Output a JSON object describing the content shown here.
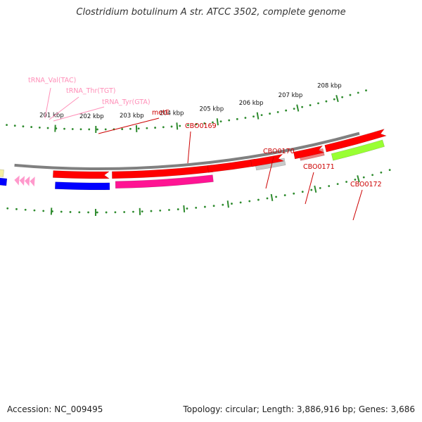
{
  "title": "Clostridium botulinum A str. ATCC 3502, complete genome",
  "footer": {
    "accession": "Accession: NC_009495",
    "stats": "Topology: circular; Length: 3,886,916 bp; Genes: 3,686"
  },
  "colors": {
    "backbone": "#808080",
    "ticks": "#2e8b2e",
    "cds": "#ff0000",
    "trna": "#ff99cc",
    "label_red": "#cc0000",
    "label_pink": "#ff8fb8",
    "blue": "#0000ff",
    "magenta": "#ff1493",
    "yellow": "#f5f0a0",
    "grey": "#c8c8c8",
    "salmon": "#f08080",
    "lime": "#99ff33"
  },
  "scale": {
    "unit": "kbp",
    "ticks": [
      "201 kbp",
      "202 kbp",
      "203 kbp",
      "204 kbp",
      "205 kbp",
      "206 kbp",
      "207 kbp",
      "208 kbp"
    ]
  },
  "gene_labels": [
    {
      "id": "trna-val",
      "text": "tRNA_Val(TAC)",
      "color": "label_pink"
    },
    {
      "id": "trna-thr",
      "text": "tRNA_Thr(TGT)",
      "color": "label_pink"
    },
    {
      "id": "trna-tyr",
      "text": "tRNA_Tyr(GTA)",
      "color": "label_pink"
    },
    {
      "id": "mete",
      "text": "metE",
      "color": "label_red"
    },
    {
      "id": "cbo0169",
      "text": "CBO0169",
      "color": "label_red"
    },
    {
      "id": "cbo0170",
      "text": "CBO0170",
      "color": "label_red"
    },
    {
      "id": "cbo0171",
      "text": "CBO0171",
      "color": "label_red"
    },
    {
      "id": "cbo0172",
      "text": "CBO0172",
      "color": "label_red"
    }
  ]
}
